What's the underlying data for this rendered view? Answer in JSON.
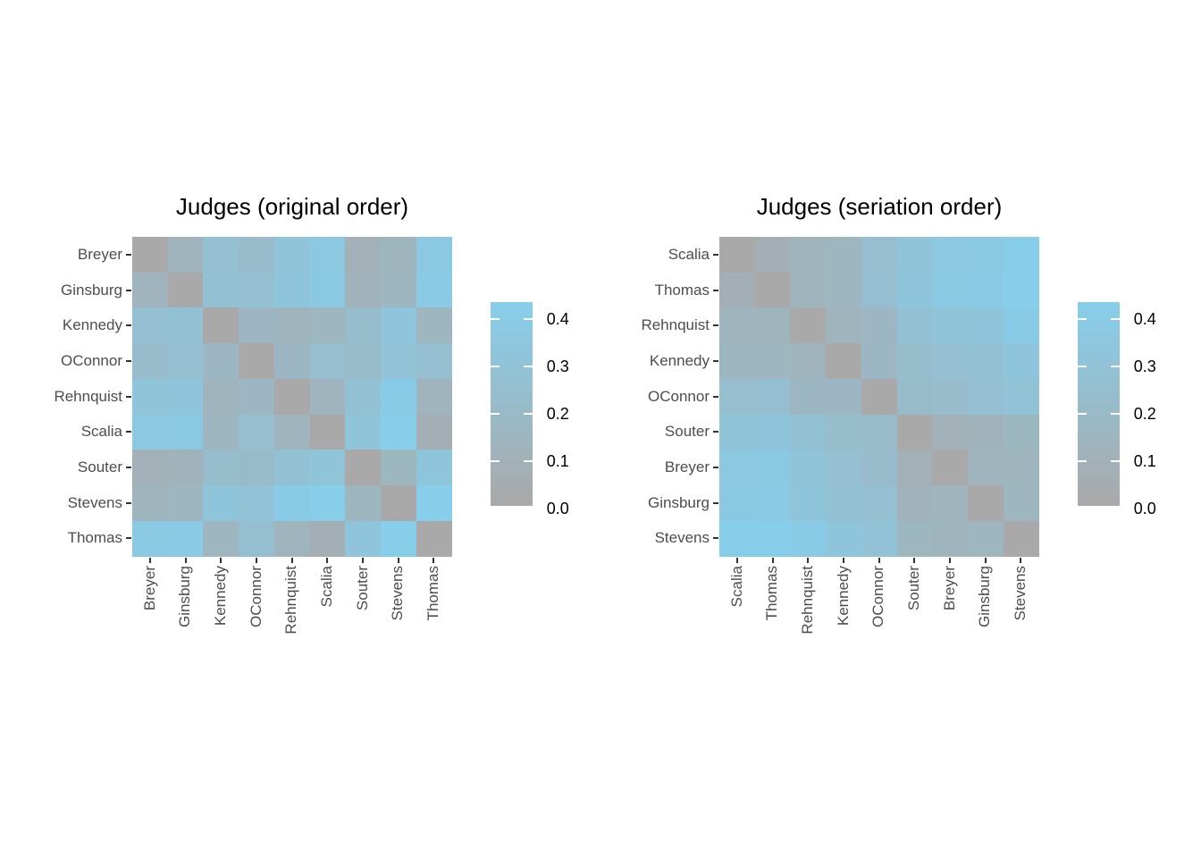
{
  "chart_data": {
    "type": "heatmap",
    "description": "Two 9x9 dissimilarity heatmaps of Supreme Court judges, left in original (alphabetical) order, right in seriation order",
    "judges": [
      "Breyer",
      "Ginsburg",
      "Kennedy",
      "OConnor",
      "Rehnquist",
      "Scalia",
      "Souter",
      "Stevens",
      "Thomas"
    ],
    "dissimilarity_matrix": [
      [
        0.0,
        0.12,
        0.25,
        0.21,
        0.3,
        0.35,
        0.09,
        0.13,
        0.36
      ],
      [
        0.12,
        0.0,
        0.27,
        0.25,
        0.31,
        0.36,
        0.11,
        0.14,
        0.37
      ],
      [
        0.25,
        0.27,
        0.0,
        0.16,
        0.12,
        0.14,
        0.22,
        0.31,
        0.14
      ],
      [
        0.21,
        0.25,
        0.16,
        0.0,
        0.16,
        0.23,
        0.2,
        0.28,
        0.24
      ],
      [
        0.3,
        0.31,
        0.12,
        0.16,
        0.0,
        0.12,
        0.27,
        0.38,
        0.12
      ],
      [
        0.35,
        0.36,
        0.14,
        0.23,
        0.12,
        0.0,
        0.3,
        0.41,
        0.07
      ],
      [
        0.09,
        0.11,
        0.22,
        0.2,
        0.27,
        0.3,
        0.0,
        0.15,
        0.31
      ],
      [
        0.13,
        0.14,
        0.31,
        0.28,
        0.38,
        0.41,
        0.15,
        0.0,
        0.41
      ],
      [
        0.36,
        0.37,
        0.14,
        0.24,
        0.12,
        0.07,
        0.31,
        0.41,
        0.0
      ]
    ],
    "panels": [
      {
        "title": "Judges (original order)",
        "order": [
          "Breyer",
          "Ginsburg",
          "Kennedy",
          "OConnor",
          "Rehnquist",
          "Scalia",
          "Souter",
          "Stevens",
          "Thomas"
        ]
      },
      {
        "title": "Judges (seriation order)",
        "order": [
          "Scalia",
          "Thomas",
          "Rehnquist",
          "Kennedy",
          "OConnor",
          "Souter",
          "Breyer",
          "Ginsburg",
          "Stevens"
        ]
      }
    ],
    "color_scale": {
      "min": 0.0,
      "max": 0.41,
      "low_color": "#a9a9a9",
      "high_color": "#87ceeb"
    },
    "legend": {
      "tick_labels": [
        "0.4",
        "0.3",
        "0.2",
        "0.1",
        "0.0"
      ],
      "tick_values": [
        0.4,
        0.3,
        0.2,
        0.1,
        0.0
      ],
      "position": "right-of-panel"
    },
    "layout_hints": {
      "grid": false,
      "cell_borders": false,
      "x_label_rotation_deg": 90
    }
  }
}
